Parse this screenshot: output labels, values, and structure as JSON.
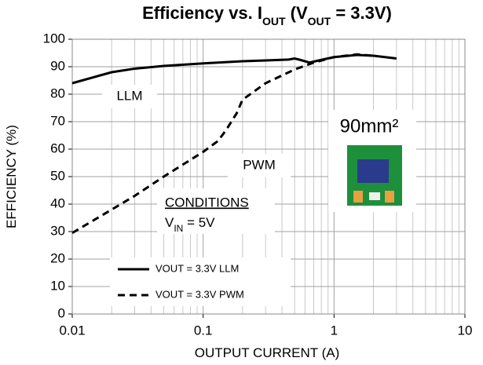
{
  "chart_data": {
    "type": "line",
    "title": [
      "Efficiency vs. I",
      "OUT",
      " (V",
      "OUT",
      " = 3.3V)"
    ],
    "x_label": "OUTPUT CURRENT (A)",
    "y_label": "EFFICIENCY (%)",
    "x_scale": "log",
    "xlim": [
      0.01,
      10
    ],
    "xticks": [
      0.01,
      0.1,
      1,
      10
    ],
    "ylim": [
      0,
      100
    ],
    "yticks": [
      0,
      10,
      20,
      30,
      40,
      50,
      60,
      70,
      80,
      90,
      100
    ],
    "grid": true,
    "x_minor_grid": true,
    "legend": "lower left",
    "series": [
      {
        "name": "VOUT = 3.3V LLM",
        "color": "#000000",
        "line_style": "solid",
        "x": [
          0.01,
          0.02,
          0.03,
          0.05,
          0.1,
          0.2,
          0.3,
          0.45,
          0.5,
          0.55,
          0.65,
          0.8,
          1,
          1.5,
          2,
          3
        ],
        "values": [
          84,
          88,
          89.3,
          90.3,
          91.2,
          92,
          92.3,
          92.6,
          93,
          92.5,
          91.5,
          92.5,
          93.5,
          94.3,
          94,
          93
        ]
      },
      {
        "name": "VOUT = 3.3V PWM",
        "color": "#000000",
        "line_style": "dashed",
        "x": [
          0.01,
          0.02,
          0.03,
          0.05,
          0.1,
          0.13,
          0.15,
          0.18,
          0.2,
          0.3,
          0.5,
          0.7,
          1,
          1.5,
          2
        ],
        "values": [
          29.5,
          38,
          43,
          50,
          59,
          63,
          67,
          73,
          78,
          84,
          89,
          91.5,
          93.5,
          94.5,
          94
        ]
      }
    ],
    "annotations": {
      "llm": "LLM",
      "pwm": "PWM",
      "area": "90mm²",
      "conditions": "CONDITIONS",
      "vin": [
        "V",
        "IN",
        " = 5V"
      ]
    }
  }
}
